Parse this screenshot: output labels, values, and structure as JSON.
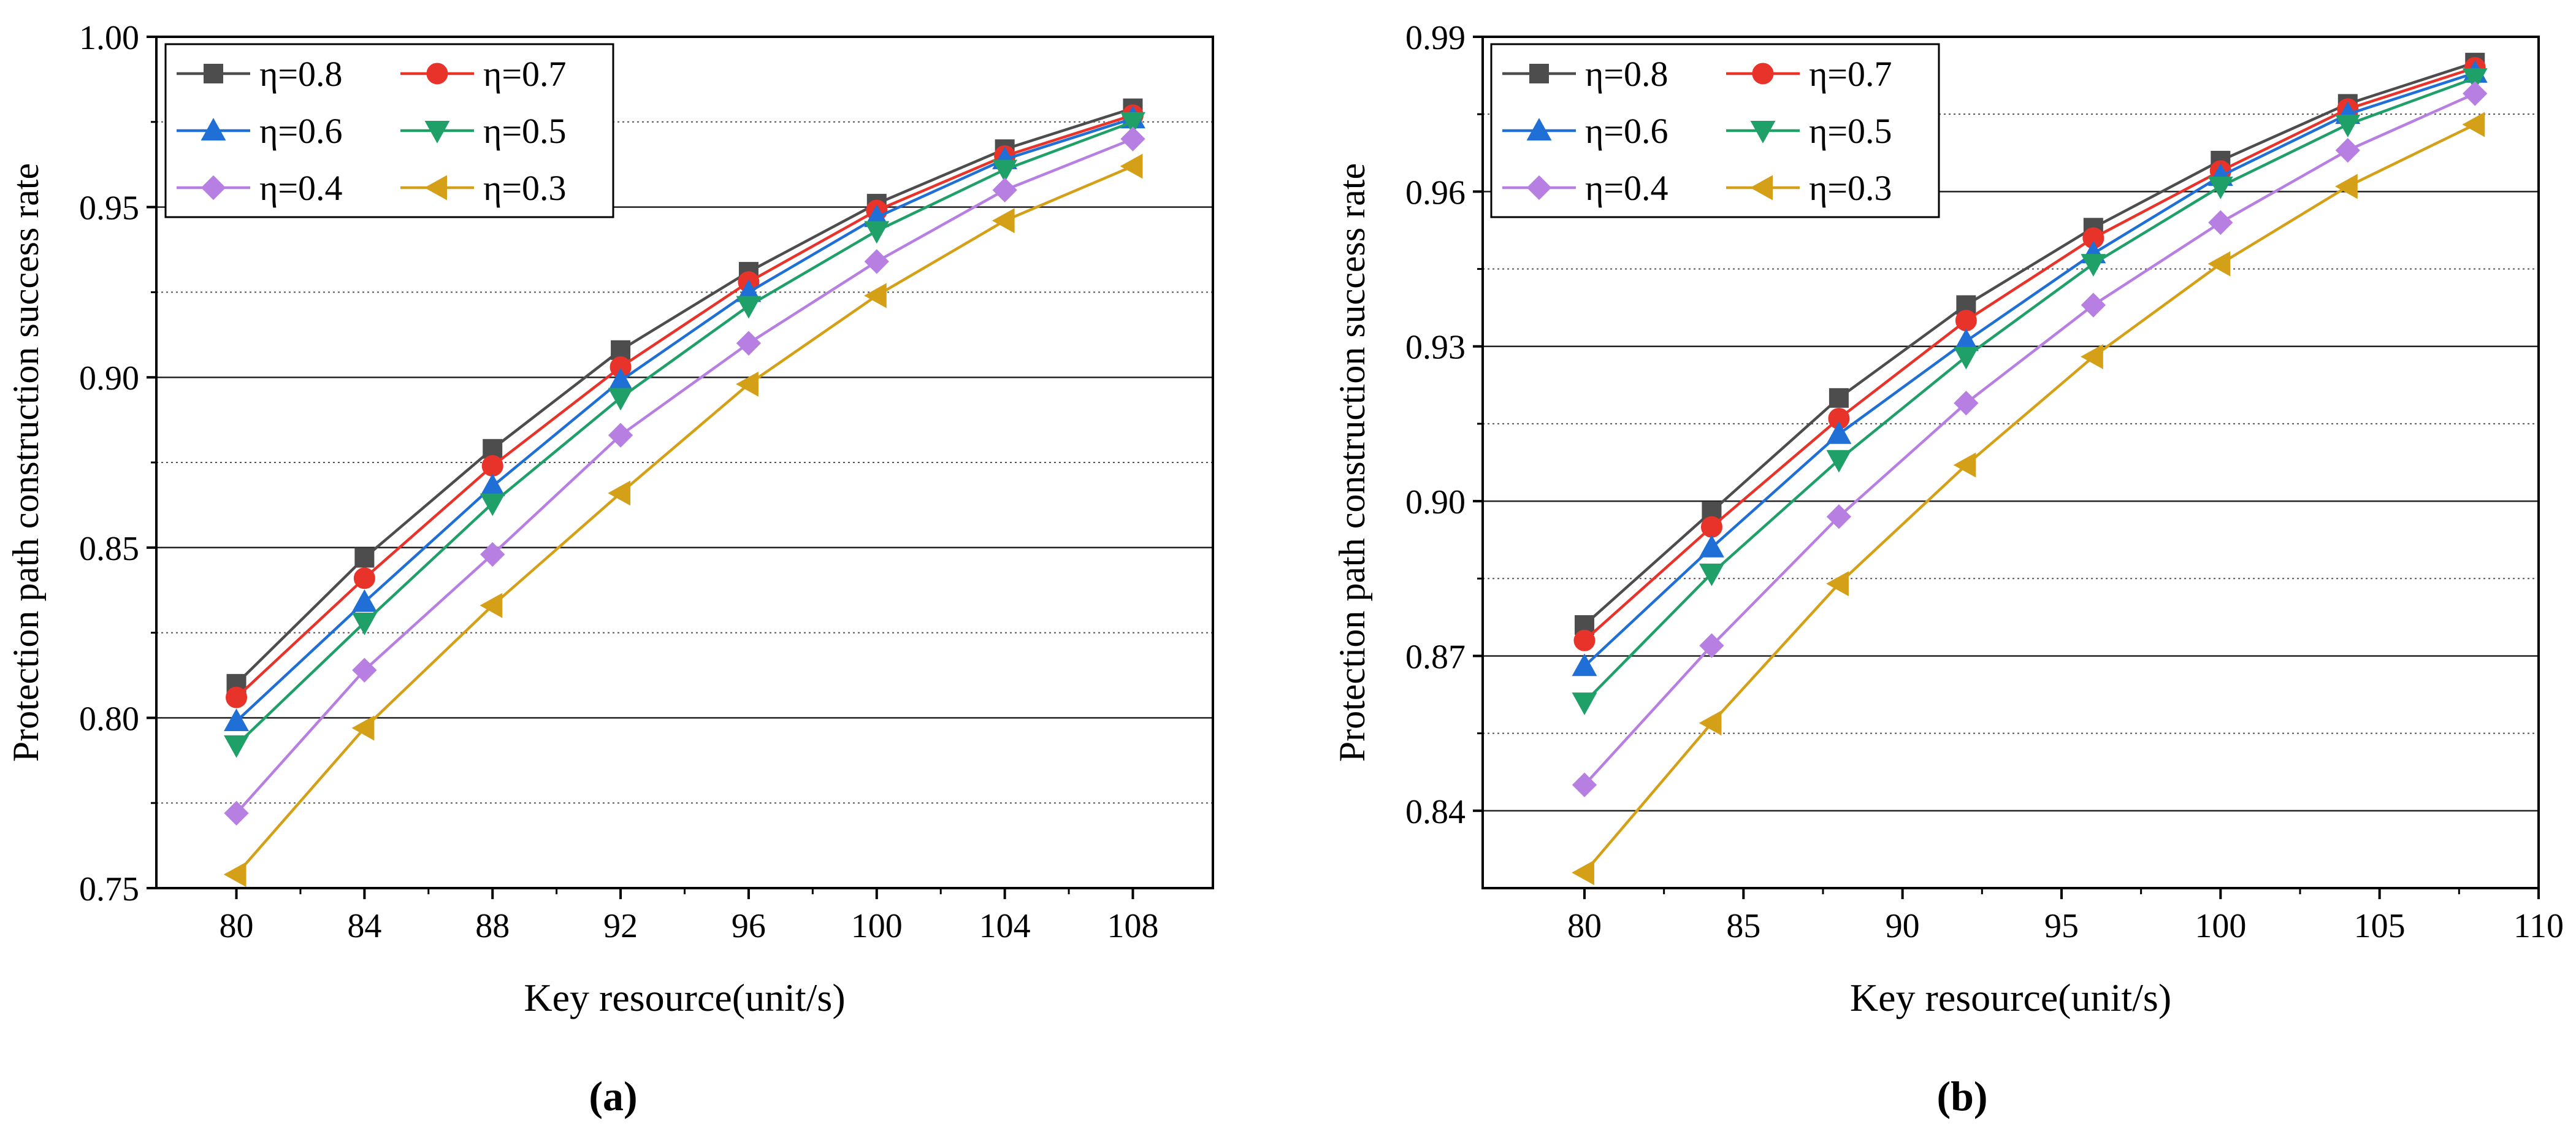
{
  "chart_data": [
    {
      "panel": "a",
      "panel_label": "(a)",
      "type": "line",
      "xlabel": "Key resource(unit/s)",
      "ylabel": "Protection path construction success rate",
      "xlim": [
        77.5,
        110.5
      ],
      "ylim": [
        0.75,
        1.0
      ],
      "xticks": [
        80,
        84,
        88,
        92,
        96,
        100,
        104,
        108
      ],
      "xtick_labels": [
        "80",
        "84",
        "88",
        "92",
        "96",
        "100",
        "104",
        "108"
      ],
      "yticks": [
        0.75,
        0.8,
        0.85,
        0.9,
        0.95,
        1.0
      ],
      "ytick_labels": [
        "0.75",
        "0.80",
        "0.85",
        "0.90",
        "0.95",
        "1.00"
      ],
      "y_dotted_grid": [
        0.775,
        0.825,
        0.875,
        0.925,
        0.975
      ],
      "grid": true,
      "legend_position": "top-left",
      "x": [
        80,
        84,
        88,
        92,
        96,
        100,
        104,
        108
      ],
      "series": [
        {
          "name": "η=0.8",
          "color": "#4d4d4d",
          "marker": "square",
          "values": [
            0.81,
            0.847,
            0.879,
            0.908,
            0.931,
            0.951,
            0.967,
            0.979
          ]
        },
        {
          "name": "η=0.7",
          "color": "#e8332b",
          "marker": "circle",
          "values": [
            0.806,
            0.841,
            0.874,
            0.903,
            0.928,
            0.949,
            0.965,
            0.977
          ]
        },
        {
          "name": "η=0.6",
          "color": "#1f6fd6",
          "marker": "triangle-up",
          "values": [
            0.799,
            0.834,
            0.868,
            0.899,
            0.925,
            0.947,
            0.964,
            0.976
          ]
        },
        {
          "name": "η=0.5",
          "color": "#1fa068",
          "marker": "triangle-down",
          "values": [
            0.792,
            0.828,
            0.863,
            0.894,
            0.921,
            0.943,
            0.961,
            0.975
          ]
        },
        {
          "name": "η=0.4",
          "color": "#b77fe2",
          "marker": "diamond",
          "values": [
            0.772,
            0.814,
            0.848,
            0.883,
            0.91,
            0.934,
            0.955,
            0.97
          ]
        },
        {
          "name": "η=0.3",
          "color": "#d4a017",
          "marker": "triangle-left",
          "values": [
            0.754,
            0.797,
            0.833,
            0.866,
            0.898,
            0.924,
            0.946,
            0.962
          ]
        }
      ]
    },
    {
      "panel": "b",
      "panel_label": "(b)",
      "type": "line",
      "xlabel": "Key resource(unit/s)",
      "ylabel": "Protection path construction success rate",
      "xlim": [
        76.8,
        110.0
      ],
      "ylim": [
        0.825,
        0.99
      ],
      "xticks": [
        80,
        85,
        90,
        95,
        100,
        105,
        110
      ],
      "xtick_labels": [
        "80",
        "85",
        "90",
        "95",
        "100",
        "105",
        "110"
      ],
      "yticks": [
        0.84,
        0.87,
        0.9,
        0.93,
        0.96,
        0.99
      ],
      "ytick_labels": [
        "0.84",
        "0.87",
        "0.90",
        "0.93",
        "0.96",
        "0.99"
      ],
      "y_dotted_grid": [
        0.855,
        0.885,
        0.915,
        0.945,
        0.975
      ],
      "grid": true,
      "legend_position": "top-left",
      "x": [
        80,
        84,
        88,
        92,
        96,
        100,
        104,
        108
      ],
      "series": [
        {
          "name": "η=0.8",
          "color": "#4d4d4d",
          "marker": "square",
          "values": [
            0.876,
            0.898,
            0.92,
            0.938,
            0.953,
            0.966,
            0.977,
            0.985
          ]
        },
        {
          "name": "η=0.7",
          "color": "#e8332b",
          "marker": "circle",
          "values": [
            0.873,
            0.895,
            0.916,
            0.935,
            0.951,
            0.964,
            0.976,
            0.984
          ]
        },
        {
          "name": "η=0.6",
          "color": "#1f6fd6",
          "marker": "triangle-up",
          "values": [
            0.868,
            0.891,
            0.913,
            0.931,
            0.948,
            0.963,
            0.975,
            0.983
          ]
        },
        {
          "name": "η=0.5",
          "color": "#1fa068",
          "marker": "triangle-down",
          "values": [
            0.861,
            0.886,
            0.908,
            0.928,
            0.946,
            0.961,
            0.973,
            0.982
          ]
        },
        {
          "name": "η=0.4",
          "color": "#b77fe2",
          "marker": "diamond",
          "values": [
            0.845,
            0.872,
            0.897,
            0.919,
            0.938,
            0.954,
            0.968,
            0.979
          ]
        },
        {
          "name": "η=0.3",
          "color": "#d4a017",
          "marker": "triangle-left",
          "values": [
            0.828,
            0.857,
            0.884,
            0.907,
            0.928,
            0.946,
            0.961,
            0.973
          ]
        }
      ]
    }
  ]
}
